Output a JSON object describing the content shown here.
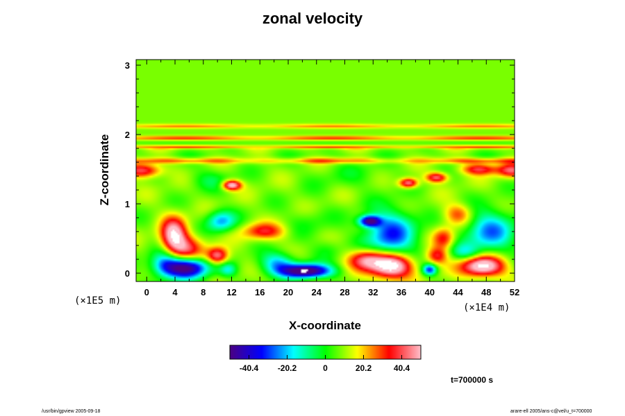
{
  "chart_data": {
    "type": "heatmap",
    "title": "zonal velocity",
    "xlabel": "X-coordinate",
    "ylabel": "Z-coordinate",
    "x_unit": "(×1E4 m)",
    "y_unit": "(×1E5 m)",
    "xlim": [
      -1.5,
      52.0
    ],
    "ylim": [
      -0.12,
      3.08
    ],
    "x_ticks": [
      "0",
      "4",
      "8",
      "12",
      "16",
      "20",
      "24",
      "28",
      "32",
      "36",
      "40",
      "44",
      "48",
      "52"
    ],
    "y_ticks": [
      "0",
      "1",
      "2",
      "3"
    ],
    "colorbar": {
      "ticks": [
        "-40.4",
        "-20.2",
        "0",
        "20.2",
        "40.4"
      ],
      "min": -50.5,
      "max": 50.5,
      "colors": [
        "#4b0082",
        "#0000ff",
        "#00ffff",
        "#00ff00",
        "#ffff00",
        "#ff0000",
        "#ffc0cb"
      ]
    },
    "background_value": 8,
    "features": [
      {
        "kind": "band",
        "z": 1.95,
        "value": 24,
        "width": 0.03
      },
      {
        "kind": "band",
        "z": 1.88,
        "value": -4,
        "width": 0.03
      },
      {
        "kind": "band",
        "z": 1.82,
        "value": 22,
        "width": 0.025
      },
      {
        "kind": "band",
        "z": 1.72,
        "value": -2,
        "width": 0.03
      },
      {
        "kind": "band",
        "z": 2.12,
        "value": 18,
        "width": 0.03
      },
      {
        "kind": "band",
        "z": 1.62,
        "value": 20,
        "width": 0.04
      },
      {
        "x": 5.5,
        "z": 0.08,
        "rx": 3.2,
        "rz": 0.15,
        "value": -60
      },
      {
        "x": 2.5,
        "z": 0.15,
        "rx": 2.0,
        "rz": 0.2,
        "value": -25
      },
      {
        "x": 22.5,
        "z": 0.03,
        "rx": 3.5,
        "rz": 0.1,
        "value": -65
      },
      {
        "x": 18.5,
        "z": 0.15,
        "rx": 2.5,
        "rz": 0.15,
        "value": -28
      },
      {
        "x": 3.8,
        "z": 0.55,
        "rx": 1.8,
        "rz": 0.25,
        "value": 45
      },
      {
        "x": 5.5,
        "z": 0.35,
        "rx": 2.5,
        "rz": 0.2,
        "value": 28
      },
      {
        "x": 10.0,
        "z": 0.25,
        "rx": 1.5,
        "rz": 0.12,
        "value": 40
      },
      {
        "x": 11.5,
        "z": 0.05,
        "rx": 1.2,
        "rz": 0.1,
        "value": -20
      },
      {
        "x": 10.5,
        "z": 0.75,
        "rx": 2.0,
        "rz": 0.15,
        "value": -30
      },
      {
        "x": 34.5,
        "z": 0.55,
        "rx": 3.5,
        "rz": 0.35,
        "value": -38
      },
      {
        "x": 31.5,
        "z": 0.75,
        "rx": 1.5,
        "rz": 0.08,
        "value": -55
      },
      {
        "x": 34.5,
        "z": 0.1,
        "rx": 3.0,
        "rz": 0.18,
        "value": 60
      },
      {
        "x": 31.0,
        "z": 0.2,
        "rx": 2.5,
        "rz": 0.15,
        "value": 35
      },
      {
        "x": 47.5,
        "z": 0.1,
        "rx": 3.0,
        "rz": 0.15,
        "value": 55
      },
      {
        "x": 48.5,
        "z": 0.6,
        "rx": 3.5,
        "rz": 0.3,
        "value": -32
      },
      {
        "x": 40.0,
        "z": 0.05,
        "rx": 1.0,
        "rz": 0.08,
        "value": -40
      },
      {
        "x": 41.0,
        "z": 0.25,
        "rx": 1.5,
        "rz": 0.12,
        "value": 28
      },
      {
        "x": 42.0,
        "z": 0.5,
        "rx": 1.5,
        "rz": 0.15,
        "value": 26
      },
      {
        "x": 12.0,
        "z": 1.27,
        "rx": 1.3,
        "rz": 0.07,
        "value": 48
      },
      {
        "x": 37.0,
        "z": 1.3,
        "rx": 1.3,
        "rz": 0.07,
        "value": 42
      },
      {
        "x": -0.5,
        "z": 1.48,
        "rx": 2.5,
        "rz": 0.1,
        "value": 35
      },
      {
        "x": 51.5,
        "z": 1.48,
        "rx": 2.0,
        "rz": 0.1,
        "value": 32
      },
      {
        "x": 47.0,
        "z": 1.5,
        "rx": 2.5,
        "rz": 0.08,
        "value": 30
      },
      {
        "x": 41.0,
        "z": 1.38,
        "rx": 1.5,
        "rz": 0.07,
        "value": 36
      },
      {
        "x": 9.0,
        "z": 1.35,
        "rx": 3.0,
        "rz": 0.15,
        "value": -10
      },
      {
        "x": 29.0,
        "z": 1.4,
        "rx": 6.0,
        "rz": 0.2,
        "value": -5
      },
      {
        "x": 16.5,
        "z": 0.6,
        "rx": 3.0,
        "rz": 0.12,
        "value": 26
      },
      {
        "x": 23.0,
        "z": 0.75,
        "rx": 3.0,
        "rz": 0.2,
        "value": -6
      },
      {
        "x": 44.0,
        "z": 0.85,
        "rx": 2.0,
        "rz": 0.15,
        "value": 22
      },
      {
        "x": 25.5,
        "z": 0.35,
        "rx": 2.0,
        "rz": 0.15,
        "value": -8
      },
      {
        "x": 45.0,
        "z": 0.3,
        "rx": 2.0,
        "rz": 0.12,
        "value": -18
      }
    ]
  },
  "timestamp": "t=700000 s",
  "footer_left": "/usr/bin/gpview 2005-09-18",
  "footer_right": "arare-ell 2005/ans-c@vel/u_t=700000"
}
